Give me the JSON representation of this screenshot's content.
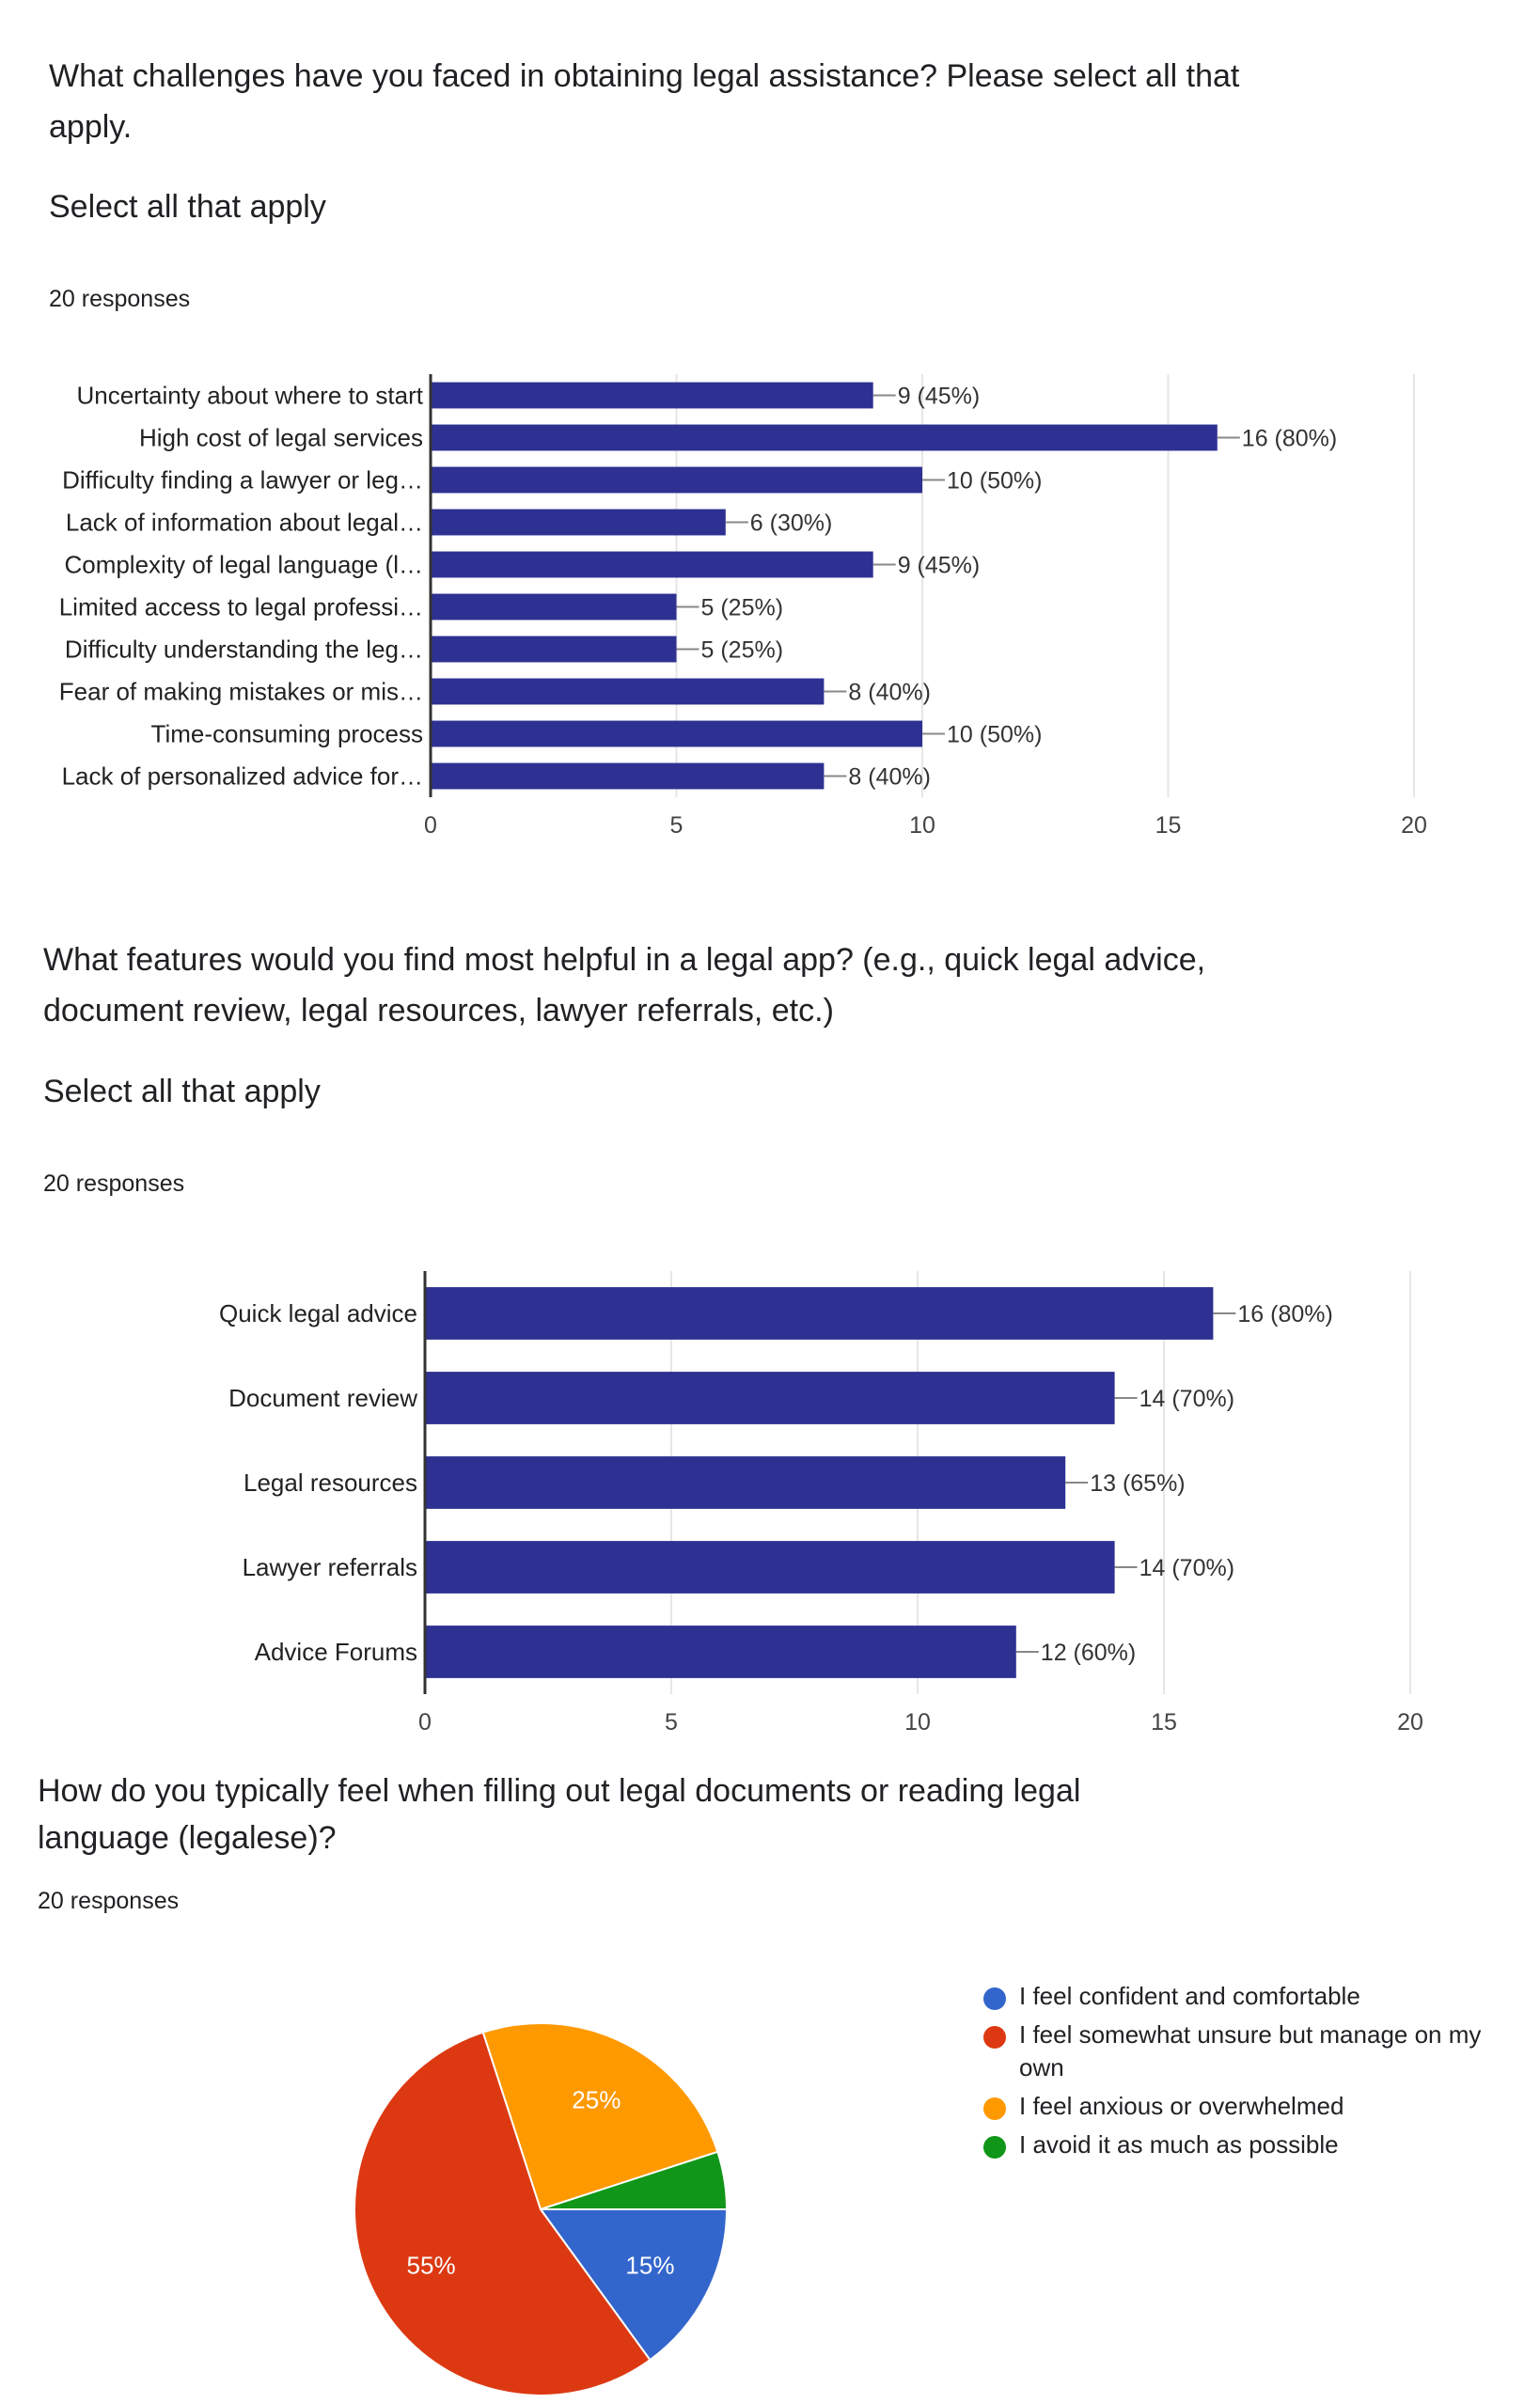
{
  "sections": [
    {
      "question": "What challenges have you faced in obtaining legal assistance? Please select all that apply.",
      "subtitle": "Select all that apply",
      "responses": "20 responses"
    },
    {
      "question": "What features would you find most helpful in a legal app? (e.g., quick legal advice, document review, legal resources, lawyer referrals, etc.)",
      "subtitle": "Select all that apply",
      "responses": "20 responses"
    },
    {
      "question": "How do you typically feel when filling out legal documents or reading legal language (legalese)?",
      "responses": "20 responses"
    }
  ],
  "colors": {
    "bar": "#2e3192",
    "grid": "#e6e6e6",
    "axis": "#333333",
    "pie": [
      "#3366cc",
      "#dc3912",
      "#ff9900",
      "#109618"
    ]
  },
  "chart_data": [
    {
      "type": "bar",
      "orientation": "horizontal",
      "categories": [
        "Uncertainty about where to start",
        "High cost of legal services",
        "Difficulty finding a lawyer or leg…",
        "Lack of information about legal…",
        "Complexity of legal language (l…",
        "Limited access to legal professi…",
        "Difficulty understanding the leg…",
        "Fear of making mistakes or mis…",
        "Time-consuming process",
        "Lack of personalized advice for…"
      ],
      "values": [
        9,
        16,
        10,
        6,
        9,
        5,
        5,
        8,
        10,
        8
      ],
      "labels": [
        "9 (45%)",
        "16 (80%)",
        "10 (50%)",
        "6 (30%)",
        "9 (45%)",
        "5 (25%)",
        "5 (25%)",
        "8 (40%)",
        "10 (50%)",
        "8 (40%)"
      ],
      "xlim": [
        0,
        20
      ],
      "xticks": [
        0,
        5,
        10,
        15,
        20
      ],
      "grid": true
    },
    {
      "type": "bar",
      "orientation": "horizontal",
      "categories": [
        "Quick legal advice",
        "Document review",
        "Legal resources",
        "Lawyer referrals",
        "Advice Forums"
      ],
      "values": [
        16,
        14,
        13,
        14,
        12
      ],
      "labels": [
        "16 (80%)",
        "14 (70%)",
        "13 (65%)",
        "14 (70%)",
        "12 (60%)"
      ],
      "xlim": [
        0,
        20
      ],
      "xticks": [
        0,
        5,
        10,
        15,
        20
      ],
      "grid": true
    },
    {
      "type": "pie",
      "categories": [
        "I feel confident and comfortable",
        "I feel somewhat unsure but manage on my own",
        "I feel anxious or overwhelmed",
        "I avoid it as much as possible"
      ],
      "values": [
        15,
        55,
        25,
        5
      ],
      "slice_labels": [
        "15%",
        "55%",
        "25%",
        ""
      ],
      "legend_position": "right"
    }
  ]
}
